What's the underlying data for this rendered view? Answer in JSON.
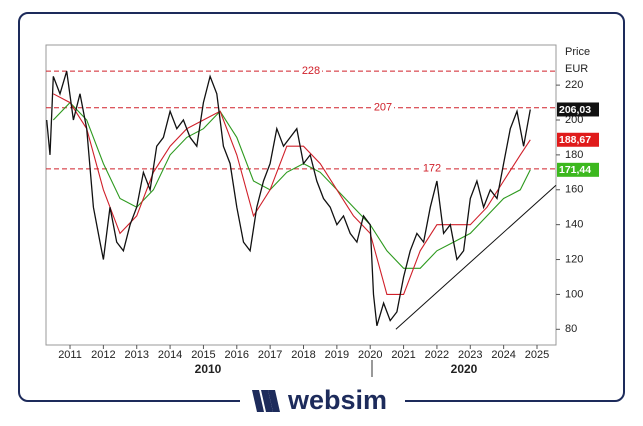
{
  "chart_data": {
    "type": "line",
    "y_axis_title": "Price",
    "y_axis_unit": "EUR",
    "xlim": [
      2010.28,
      2025.57
    ],
    "ylim": [
      71,
      243
    ],
    "xticks": [
      2011,
      2012,
      2013,
      2014,
      2015,
      2016,
      2017,
      2018,
      2019,
      2020,
      2021,
      2022,
      2023,
      2024,
      2025
    ],
    "yticks": [
      80,
      100,
      120,
      140,
      160,
      180,
      200,
      220
    ],
    "period_labels": [
      "2010",
      "2020"
    ],
    "levels": [
      228,
      207,
      172
    ],
    "level_color": "#d0202a",
    "series": [
      {
        "color": "#111111",
        "label_color": "#111111",
        "x": [
          2010.3,
          2010.4,
          2010.5,
          2010.7,
          2010.9,
          2011.1,
          2011.3,
          2011.5,
          2011.7,
          2011.9,
          2012.0,
          2012.2,
          2012.4,
          2012.6,
          2012.8,
          2013.0,
          2013.2,
          2013.4,
          2013.6,
          2013.8,
          2014.0,
          2014.2,
          2014.4,
          2014.6,
          2014.8,
          2015.0,
          2015.2,
          2015.4,
          2015.6,
          2015.8,
          2016.0,
          2016.2,
          2016.4,
          2016.6,
          2016.8,
          2017.0,
          2017.2,
          2017.4,
          2017.6,
          2017.8,
          2018.0,
          2018.2,
          2018.4,
          2018.6,
          2018.8,
          2019.0,
          2019.2,
          2019.4,
          2019.6,
          2019.8,
          2020.0,
          2020.1,
          2020.2,
          2020.4,
          2020.6,
          2020.8,
          2021.0,
          2021.2,
          2021.4,
          2021.6,
          2021.8,
          2022.0,
          2022.2,
          2022.4,
          2022.6,
          2022.8,
          2023.0,
          2023.2,
          2023.4,
          2023.6,
          2023.8,
          2024.0,
          2024.2,
          2024.4,
          2024.6,
          2024.8
        ],
        "values": [
          200,
          180,
          225,
          215,
          228,
          200,
          215,
          195,
          150,
          130,
          120,
          150,
          130,
          125,
          140,
          150,
          170,
          160,
          185,
          190,
          205,
          195,
          200,
          190,
          185,
          210,
          225,
          215,
          185,
          175,
          150,
          130,
          125,
          150,
          165,
          175,
          195,
          185,
          190,
          195,
          175,
          180,
          165,
          155,
          150,
          140,
          145,
          135,
          130,
          145,
          140,
          100,
          82,
          95,
          85,
          90,
          110,
          125,
          135,
          130,
          150,
          165,
          135,
          140,
          120,
          125,
          155,
          165,
          150,
          160,
          155,
          175,
          195,
          205,
          185,
          206.03
        ],
        "last_label": {
          "value": 206.03,
          "label": "206,03"
        }
      },
      {
        "color": "#d0202a",
        "label_color": "#e01b1b",
        "x": [
          2010.5,
          2011,
          2011.5,
          2012,
          2012.5,
          2013,
          2013.5,
          2014,
          2014.5,
          2015,
          2015.5,
          2016,
          2016.5,
          2017,
          2017.5,
          2018,
          2018.5,
          2019,
          2019.5,
          2020,
          2020.5,
          2021,
          2021.5,
          2022,
          2022.5,
          2023,
          2023.5,
          2024,
          2024.5,
          2024.8
        ],
        "values": [
          215,
          210,
          195,
          160,
          135,
          145,
          170,
          185,
          195,
          200,
          205,
          180,
          145,
          160,
          185,
          185,
          175,
          160,
          145,
          135,
          100,
          100,
          125,
          140,
          140,
          140,
          150,
          165,
          180,
          188.67
        ],
        "last_label": {
          "value": 188.67,
          "label": "188,67"
        }
      },
      {
        "color": "#2e9a1f",
        "label_color": "#3cb81e",
        "x": [
          2010.5,
          2011,
          2011.5,
          2012,
          2012.5,
          2013,
          2013.5,
          2014,
          2014.5,
          2015,
          2015.5,
          2016,
          2016.5,
          2017,
          2017.5,
          2018,
          2018.5,
          2019,
          2019.5,
          2020,
          2020.5,
          2021,
          2021.5,
          2022,
          2022.5,
          2023,
          2023.5,
          2024,
          2024.5,
          2024.8
        ],
        "values": [
          200,
          210,
          200,
          175,
          155,
          150,
          160,
          180,
          190,
          195,
          205,
          190,
          165,
          160,
          170,
          175,
          170,
          160,
          150,
          140,
          125,
          115,
          115,
          125,
          130,
          135,
          145,
          155,
          160,
          171.44
        ],
        "last_label": {
          "value": 171.44,
          "label": "171,44"
        }
      }
    ],
    "trendline": {
      "color": "#111111",
      "x": [
        2020.77,
        2025.57
      ],
      "values": [
        80,
        162.6
      ]
    }
  },
  "brand": "websim"
}
